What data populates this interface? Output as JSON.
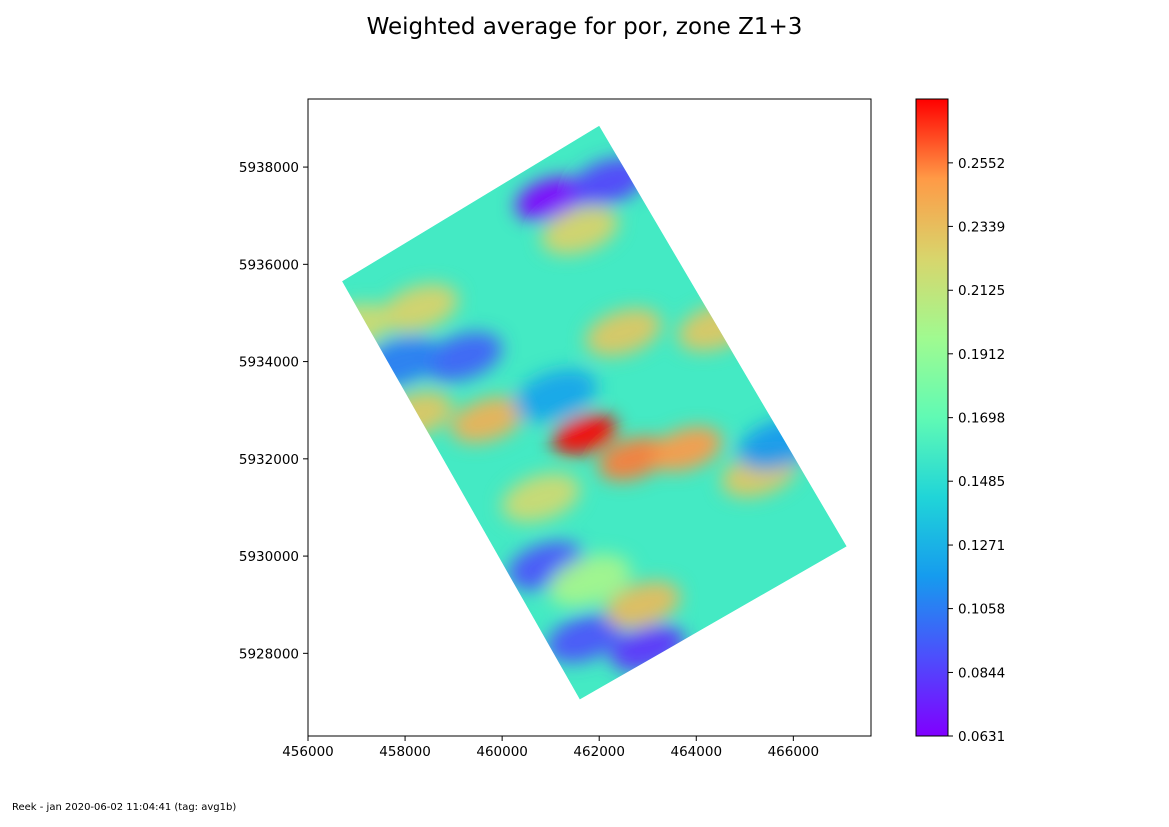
{
  "figure": {
    "title": "Weighted average for por, zone Z1+3",
    "footer": "Reek - jan 2020-06-02 11:04:41 (tag: avg1b)"
  },
  "chart_data": {
    "type": "heatmap",
    "title": "Weighted average for por, zone Z1+3",
    "xlim": [
      456000,
      467600
    ],
    "ylim": [
      5926300,
      5939400
    ],
    "x_ticks": [
      456000,
      458000,
      460000,
      462000,
      464000,
      466000
    ],
    "y_ticks": [
      5928000,
      5930000,
      5932000,
      5934000,
      5936000,
      5938000
    ],
    "grid": false,
    "colormap": "rainbow",
    "colorbar": {
      "min": 0.0631,
      "max": 0.2766,
      "ticks": [
        "0.0631",
        "0.0844",
        "0.1058",
        "0.1271",
        "0.1485",
        "0.1698",
        "0.1912",
        "0.2125",
        "0.2339",
        "0.2552"
      ]
    },
    "domain_corners": [
      {
        "x": 456700,
        "y": 5935650
      },
      {
        "x": 462000,
        "y": 5938850
      },
      {
        "x": 467100,
        "y": 5930200
      },
      {
        "x": 461600,
        "y": 5927050
      }
    ],
    "features": [
      {
        "x": 461700,
        "y": 5932500,
        "value": 0.2766
      },
      {
        "x": 462700,
        "y": 5932000,
        "value": 0.2552
      },
      {
        "x": 463800,
        "y": 5932200,
        "value": 0.25
      },
      {
        "x": 459700,
        "y": 5932800,
        "value": 0.24
      },
      {
        "x": 458200,
        "y": 5932900,
        "value": 0.23
      },
      {
        "x": 465300,
        "y": 5931700,
        "value": 0.23
      },
      {
        "x": 461000,
        "y": 5937350,
        "value": 0.0631
      },
      {
        "x": 462200,
        "y": 5937700,
        "value": 0.085
      },
      {
        "x": 459200,
        "y": 5934100,
        "value": 0.095
      },
      {
        "x": 457900,
        "y": 5934000,
        "value": 0.105
      },
      {
        "x": 460900,
        "y": 5929800,
        "value": 0.09
      },
      {
        "x": 463000,
        "y": 5928100,
        "value": 0.08
      },
      {
        "x": 461700,
        "y": 5928300,
        "value": 0.09
      },
      {
        "x": 462500,
        "y": 5934600,
        "value": 0.23
      },
      {
        "x": 458300,
        "y": 5935100,
        "value": 0.225
      },
      {
        "x": 456900,
        "y": 5934700,
        "value": 0.22
      },
      {
        "x": 461600,
        "y": 5936700,
        "value": 0.225
      },
      {
        "x": 464400,
        "y": 5934700,
        "value": 0.23
      },
      {
        "x": 462900,
        "y": 5929000,
        "value": 0.235
      },
      {
        "x": 461800,
        "y": 5929500,
        "value": 0.2
      },
      {
        "x": 460800,
        "y": 5931200,
        "value": 0.22
      },
      {
        "x": 465700,
        "y": 5932300,
        "value": 0.115
      },
      {
        "x": 461100,
        "y": 5933300,
        "value": 0.12
      }
    ]
  }
}
